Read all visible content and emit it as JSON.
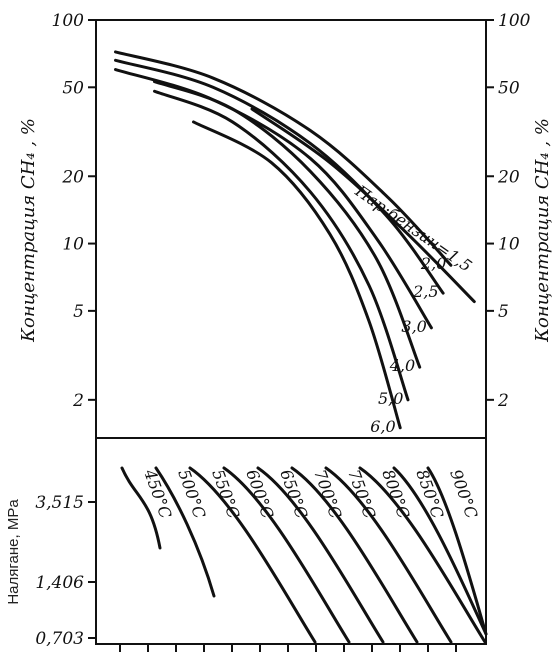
{
  "chart_data": [
    {
      "type": "line",
      "y_scale": "log",
      "ylabel_left": "Концентрация CH₄ , %",
      "ylabel_right": "Концентрация CH₄ , %",
      "y_ticks": [
        100,
        50,
        20,
        10,
        5,
        2
      ],
      "y_tick_labels": [
        "100",
        "50",
        "20",
        "10",
        "5",
        "2"
      ],
      "series_label_prefix": "Пар:бензин=",
      "series": [
        {
          "name": "1,5",
          "label": "Пар:бензин=1,5",
          "points": [
            [
              0.4,
              40
            ],
            [
              0.6,
              23
            ],
            [
              0.8,
              11
            ],
            [
              0.97,
              5.5
            ]
          ]
        },
        {
          "name": "2,0",
          "label": "2,0",
          "points": [
            [
              0.05,
              72
            ],
            [
              0.3,
              55
            ],
            [
              0.55,
              32
            ],
            [
              0.75,
              16
            ],
            [
              0.91,
              8
            ]
          ]
        },
        {
          "name": "2,5",
          "label": "2,5",
          "points": [
            [
              0.05,
              66
            ],
            [
              0.3,
              50
            ],
            [
              0.55,
              28
            ],
            [
              0.75,
              13
            ],
            [
              0.89,
              6
            ]
          ]
        },
        {
          "name": "3,0",
          "label": "3,0",
          "points": [
            [
              0.05,
              60
            ],
            [
              0.3,
              44
            ],
            [
              0.55,
              24
            ],
            [
              0.72,
              10.5
            ],
            [
              0.86,
              4.2
            ]
          ]
        },
        {
          "name": "4,0",
          "label": "4,0",
          "points": [
            [
              0.15,
              53
            ],
            [
              0.35,
              40
            ],
            [
              0.55,
              21
            ],
            [
              0.72,
              8.5
            ],
            [
              0.83,
              2.8
            ]
          ]
        },
        {
          "name": "5,0",
          "label": "5,0",
          "points": [
            [
              0.15,
              48
            ],
            [
              0.35,
              35
            ],
            [
              0.55,
              17
            ],
            [
              0.7,
              6.5
            ],
            [
              0.8,
              2.0
            ]
          ]
        },
        {
          "name": "6,0",
          "label": "6,0",
          "points": [
            [
              0.25,
              35
            ],
            [
              0.45,
              23
            ],
            [
              0.6,
              11
            ],
            [
              0.7,
              4.5
            ],
            [
              0.78,
              1.5
            ]
          ]
        }
      ]
    },
    {
      "type": "line",
      "ylabel": "Налягане, MPa",
      "y_ticks": [
        3.515,
        1.406,
        0.703
      ],
      "y_tick_labels": [
        "3,515",
        "1,406",
        "0,703"
      ],
      "series": [
        {
          "name": "450°C",
          "label": "450°C"
        },
        {
          "name": "500°C",
          "label": "500°C"
        },
        {
          "name": "550°C",
          "label": "550°C"
        },
        {
          "name": "600°C",
          "label": "600°C"
        },
        {
          "name": "650°C",
          "label": "650°C"
        },
        {
          "name": "700°C",
          "label": "700°C"
        },
        {
          "name": "750°C",
          "label": "750°C"
        },
        {
          "name": "800°C",
          "label": "800°C"
        },
        {
          "name": "850°C",
          "label": "850°C"
        },
        {
          "name": "900°C",
          "label": "900°C"
        }
      ]
    }
  ]
}
